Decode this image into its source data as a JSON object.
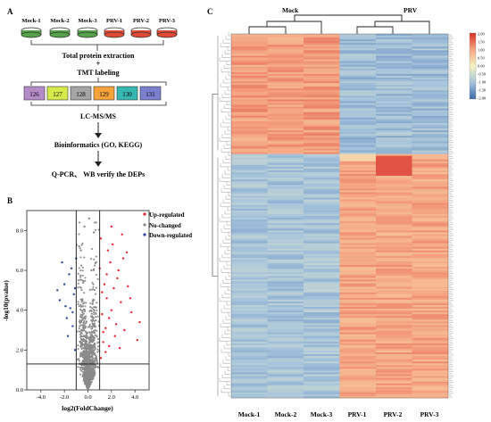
{
  "panels": {
    "A": {
      "label": "A",
      "samples_top": [
        "Mock-1",
        "Mock-2",
        "Mock-3",
        "PRV-1",
        "PRV-2",
        "PRV-3"
      ],
      "dish_colors": {
        "mock": "#55a24a",
        "prv": "#e14a35"
      },
      "step_extraction": "Total protein extraction",
      "plus": "+",
      "step_tmt": "TMT labeling",
      "tags": [
        {
          "label": "126",
          "color": "#b48cc7"
        },
        {
          "label": "127",
          "color": "#d7ea4b"
        },
        {
          "label": "128",
          "color": "#a5a5a5"
        },
        {
          "label": "129",
          "color": "#f7a33c"
        },
        {
          "label": "130",
          "color": "#36b7b1"
        },
        {
          "label": "131",
          "color": "#7b7fd0"
        }
      ],
      "step_lcms": "LC-MS/MS",
      "step_bioinfo": "Bioinformatics (GO, KEGG)",
      "step_verify": "Q-PCR、 WB verify the DEPs"
    },
    "B": {
      "label": "B",
      "legend": [
        {
          "label": "Up-regulated",
          "color": "#e8252a"
        },
        {
          "label": "No-changed",
          "color": "#8a8a8a"
        },
        {
          "label": "Down-regulated",
          "color": "#2b4a9b"
        }
      ]
    },
    "C": {
      "label": "C",
      "group_mock": "Mock",
      "group_prv": "PRV",
      "columns": [
        "Mock-1",
        "Mock-2",
        "Mock-3",
        "PRV-1",
        "PRV-2",
        "PRV-3"
      ],
      "colorbar_ticks": [
        "2.00",
        "1.50",
        "1.00",
        "0.50",
        "0.00",
        "-0.50",
        "-1.00",
        "-1.50",
        "-2.00"
      ],
      "colorbar_colors": [
        "#d7302a",
        "#f5a582",
        "#f7f1c1",
        "#a6c4dc",
        "#3b69a8"
      ]
    }
  },
  "chart_data": {
    "type": "scatter",
    "title": "",
    "xlabel": "log2(FoldChange)",
    "ylabel": "-log10(pvalue)",
    "xlim": [
      -5.2,
      5.2
    ],
    "ylim": [
      0,
      9
    ],
    "xticks": [
      "-4.0",
      "-2.0",
      "0.0",
      "2.0",
      "4.0"
    ],
    "yticks": [
      "0.0",
      "2.0",
      "4.0",
      "6.0",
      "8.0"
    ],
    "thresholds": {
      "log2fc": [
        -1,
        1
      ],
      "neg_log10_p": 1.3
    },
    "series": [
      {
        "name": "Up-regulated",
        "color": "#e8252a",
        "points": [
          [
            1.1,
            1.6
          ],
          [
            1.3,
            2.4
          ],
          [
            1.5,
            3.1
          ],
          [
            1.2,
            3.8
          ],
          [
            1.8,
            2.2
          ],
          [
            2.0,
            4.0
          ],
          [
            1.6,
            4.6
          ],
          [
            2.4,
            3.3
          ],
          [
            2.2,
            5.1
          ],
          [
            1.4,
            5.3
          ],
          [
            2.8,
            4.4
          ],
          [
            3.1,
            3.0
          ],
          [
            2.6,
            6.0
          ],
          [
            1.9,
            6.4
          ],
          [
            3.4,
            5.2
          ],
          [
            2.1,
            7.3
          ],
          [
            2.9,
            7.8
          ],
          [
            1.7,
            7.0
          ],
          [
            3.7,
            3.9
          ],
          [
            4.2,
            2.5
          ],
          [
            1.2,
            4.9
          ],
          [
            1.0,
            6.1
          ],
          [
            2.3,
            2.7
          ],
          [
            3.0,
            6.6
          ],
          [
            1.5,
            1.9
          ],
          [
            2.5,
            5.6
          ],
          [
            3.6,
            4.6
          ],
          [
            1.8,
            3.6
          ],
          [
            1.3,
            2.9
          ],
          [
            2.7,
            2.1
          ],
          [
            4.4,
            3.4
          ],
          [
            1.1,
            7.6
          ],
          [
            2.0,
            8.2
          ],
          [
            3.3,
            6.9
          ],
          [
            1.6,
            5.8
          ]
        ]
      },
      {
        "name": "Down-regulated",
        "color": "#2b4a9b",
        "points": [
          [
            -1.1,
            2.0
          ],
          [
            -1.3,
            3.2
          ],
          [
            -1.5,
            4.1
          ],
          [
            -1.2,
            4.8
          ],
          [
            -1.8,
            3.6
          ],
          [
            -2.0,
            5.3
          ],
          [
            -1.6,
            5.8
          ],
          [
            -2.4,
            4.5
          ],
          [
            -1.4,
            6.1
          ],
          [
            -2.2,
            6.4
          ],
          [
            -1.1,
            5.1
          ],
          [
            -1.7,
            2.7
          ],
          [
            -2.6,
            5.0
          ],
          [
            -1.9,
            4.2
          ],
          [
            -1.3,
            3.9
          ],
          [
            -1.0,
            6.6
          ]
        ]
      },
      {
        "name": "No-changed",
        "color": "#8a8a8a",
        "points": [
          [
            0.1,
            8.6
          ],
          [
            0.5,
            7.9
          ],
          [
            0.7,
            6.4
          ],
          [
            -0.6,
            7.0
          ],
          [
            0.3,
            6.0
          ],
          [
            -0.3,
            8.2
          ]
        ]
      }
    ]
  }
}
